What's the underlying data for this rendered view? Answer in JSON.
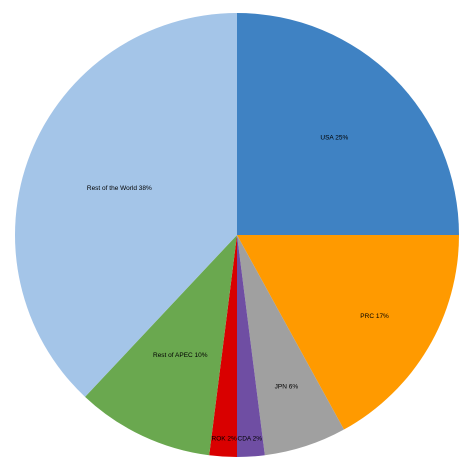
{
  "chart_data": {
    "type": "pie",
    "title": "",
    "slices": [
      {
        "label": "USA 25%",
        "name": "USA",
        "value": 25,
        "color": "#3f82c3"
      },
      {
        "label": "PRC 17%",
        "name": "PRC",
        "value": 17,
        "color": "#ff9a00"
      },
      {
        "label": "JPN 6%",
        "name": "JPN",
        "value": 6,
        "color": "#a0a0a0"
      },
      {
        "label": "CDA 2%",
        "name": "CDA",
        "value": 2,
        "color": "#6f4ea3"
      },
      {
        "label": "ROK 2%",
        "name": "ROK",
        "value": 2,
        "color": "#d90000"
      },
      {
        "label": "Rest of APEC 10%",
        "name": "Rest of APEC",
        "value": 10,
        "color": "#6aa84f"
      },
      {
        "label": "Rest of the World 38%",
        "name": "Rest of the World",
        "value": 38,
        "color": "#a4c5e8"
      }
    ],
    "start": "12 o'clock",
    "direction": "clockwise",
    "legend": "none"
  }
}
